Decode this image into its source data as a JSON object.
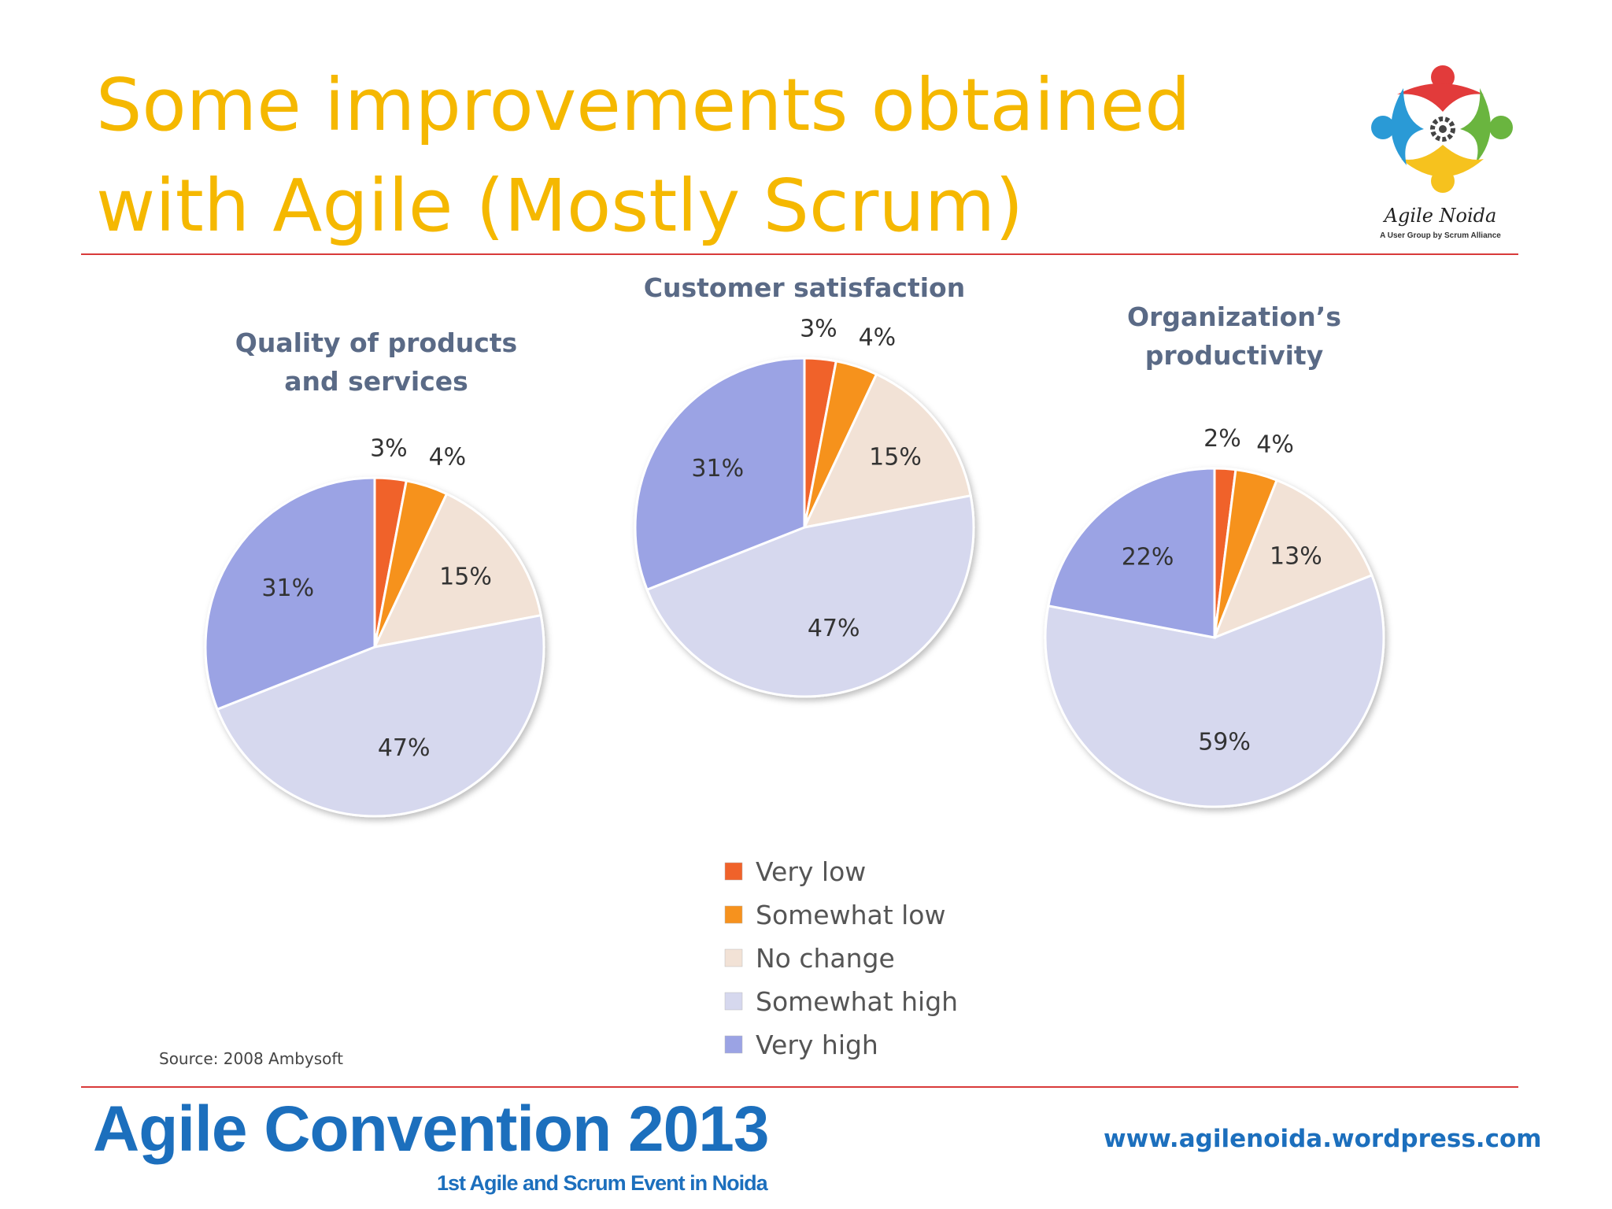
{
  "slide": {
    "title_line1": "Some improvements obtained",
    "title_line2": "with Agile (Mostly Scrum)",
    "logo_name": "Agile Noida",
    "logo_tagline": "A User Group by Scrum Alliance",
    "source": "Source: 2008 Ambysoft",
    "footer_title": "Agile Convention 2013",
    "footer_subtitle": "1st Agile and Scrum Event in Noida",
    "footer_url": "www.agilenoida.wordpress.com",
    "colors": {
      "title": "#f5b800",
      "rule": "#d83a3a",
      "footer": "#1c6fbd"
    }
  },
  "chart_data": [
    {
      "type": "pie",
      "title": [
        "Quality of products",
        "and services"
      ],
      "categories": [
        "Very low",
        "Somewhat low",
        "No change",
        "Somewhat high",
        "Very high"
      ],
      "values": [
        3,
        4,
        15,
        47,
        31
      ],
      "labels": [
        "3%",
        "4%",
        "15%",
        "47%",
        "31%"
      ]
    },
    {
      "type": "pie",
      "title": [
        "Customer satisfaction"
      ],
      "categories": [
        "Very low",
        "Somewhat low",
        "No change",
        "Somewhat high",
        "Very high"
      ],
      "values": [
        3,
        4,
        15,
        47,
        31
      ],
      "labels": [
        "3%",
        "4%",
        "15%",
        "47%",
        "31%"
      ]
    },
    {
      "type": "pie",
      "title": [
        "Organization’s",
        "productivity"
      ],
      "categories": [
        "Very low",
        "Somewhat low",
        "No change",
        "Somewhat high",
        "Very high"
      ],
      "values": [
        2,
        4,
        13,
        59,
        22
      ],
      "labels": [
        "2%",
        "4%",
        "13%",
        "59%",
        "22%"
      ]
    }
  ],
  "legend": {
    "items": [
      {
        "label": "Very low",
        "color": "#f0622a"
      },
      {
        "label": "Somewhat low",
        "color": "#f6921e"
      },
      {
        "label": "No change",
        "color": "#f2e2d6"
      },
      {
        "label": "Somewhat high",
        "color": "#d6d8ee"
      },
      {
        "label": "Very high",
        "color": "#9ba3e4"
      }
    ]
  }
}
